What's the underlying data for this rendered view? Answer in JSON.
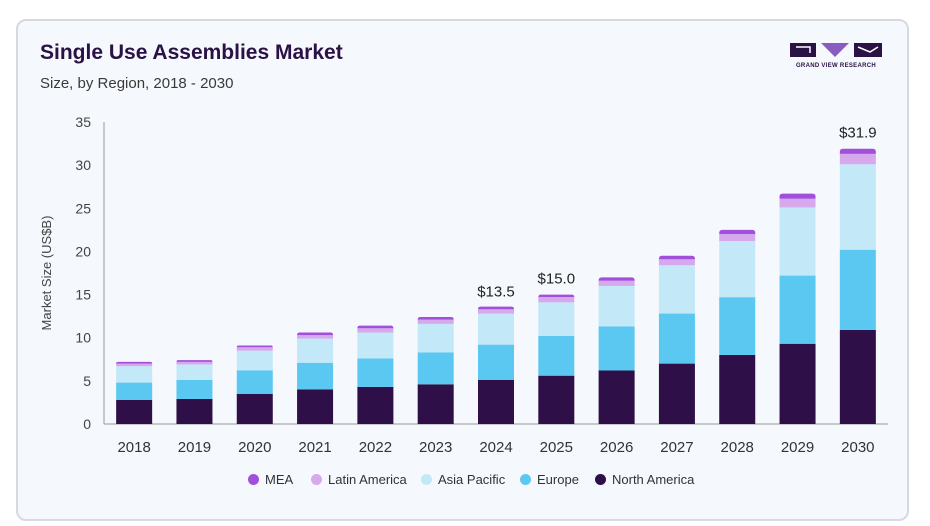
{
  "header": {
    "title": "Single Use Assemblies Market",
    "subtitle": "Size, by Region, 2018 - 2030"
  },
  "logo": {
    "text": "GRAND VIEW RESEARCH",
    "color": "#2b1245",
    "accent": "#8a5cc2"
  },
  "chart_data": {
    "type": "bar",
    "stacked": true,
    "categories": [
      "2018",
      "2019",
      "2020",
      "2021",
      "2022",
      "2023",
      "2024",
      "2025",
      "2026",
      "2027",
      "2028",
      "2029",
      "2030"
    ],
    "ylabel": "Market Size (US$B)",
    "ylim": [
      0,
      35
    ],
    "yticks": [
      0,
      5,
      10,
      15,
      20,
      25,
      30,
      35
    ],
    "grid": false,
    "legend_position": "bottom",
    "series": [
      {
        "name": "North America",
        "color": "#2e0f47",
        "values": [
          2.8,
          2.9,
          3.5,
          4.0,
          4.3,
          4.6,
          5.1,
          5.6,
          6.2,
          7.0,
          8.0,
          9.3,
          10.9
        ]
      },
      {
        "name": "Europe",
        "color": "#5bc8f2",
        "values": [
          2.0,
          2.2,
          2.7,
          3.1,
          3.3,
          3.7,
          4.1,
          4.6,
          5.1,
          5.8,
          6.7,
          7.9,
          9.3
        ]
      },
      {
        "name": "Asia Pacific",
        "color": "#c3e8f8",
        "values": [
          1.9,
          1.8,
          2.3,
          2.8,
          3.0,
          3.3,
          3.6,
          3.9,
          4.7,
          5.6,
          6.5,
          7.9,
          9.9
        ]
      },
      {
        "name": "Latin America",
        "color": "#d6a9ec",
        "values": [
          0.3,
          0.3,
          0.4,
          0.4,
          0.5,
          0.5,
          0.5,
          0.6,
          0.6,
          0.7,
          0.8,
          1.0,
          1.2
        ]
      },
      {
        "name": "MEA",
        "color": "#a24fdc",
        "values": [
          0.2,
          0.2,
          0.2,
          0.3,
          0.3,
          0.3,
          0.3,
          0.3,
          0.4,
          0.4,
          0.5,
          0.6,
          0.6
        ]
      }
    ],
    "annotations": [
      {
        "category": "2024",
        "text": "$13.5",
        "value": 13.5
      },
      {
        "category": "2025",
        "text": "$15.0",
        "value": 15.0
      },
      {
        "category": "2030",
        "text": "$31.9",
        "value": 31.9
      }
    ],
    "legend_order": [
      "MEA",
      "Latin America",
      "Asia Pacific",
      "Europe",
      "North America"
    ]
  }
}
